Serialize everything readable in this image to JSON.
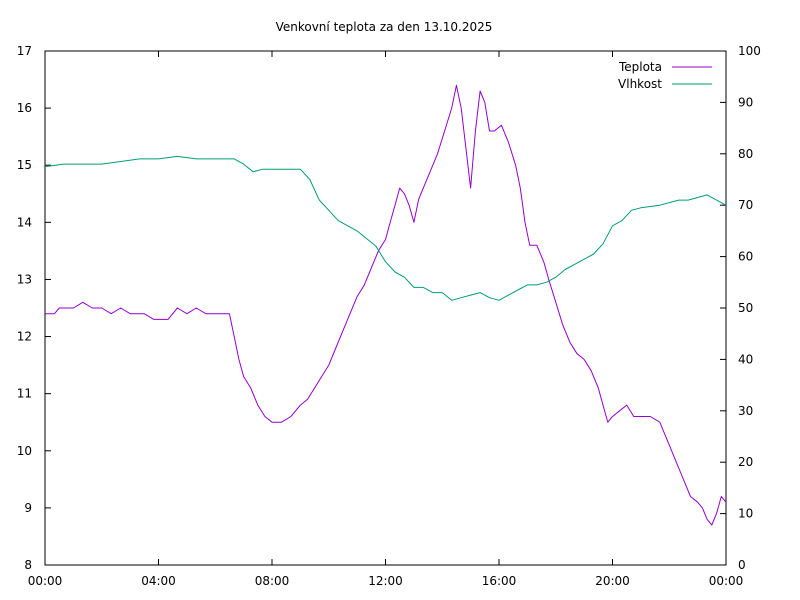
{
  "chart_data": {
    "type": "line",
    "title": "Venkovní teplota za den 13.10.2025",
    "x_range": [
      "00:00",
      "24:00"
    ],
    "x_ticks": [
      "00:00",
      "04:00",
      "08:00",
      "12:00",
      "16:00",
      "20:00",
      "00:00"
    ],
    "y_left_range": [
      8,
      17
    ],
    "y_left_ticks": [
      "8",
      "9",
      "10",
      "11",
      "12",
      "13",
      "14",
      "15",
      "16",
      "17"
    ],
    "y_right_range": [
      0,
      100
    ],
    "y_right_ticks": [
      "0",
      "10",
      "20",
      "30",
      "40",
      "50",
      "60",
      "70",
      "80",
      "90",
      "100"
    ],
    "grid": false,
    "legend": "top-right",
    "series": [
      {
        "name": "Teplota",
        "axis": "left",
        "color": "#9400d3",
        "points": [
          [
            "00:00",
            12.4
          ],
          [
            "00:20",
            12.4
          ],
          [
            "00:30",
            12.5
          ],
          [
            "01:00",
            12.5
          ],
          [
            "01:20",
            12.6
          ],
          [
            "01:40",
            12.5
          ],
          [
            "02:00",
            12.5
          ],
          [
            "02:20",
            12.4
          ],
          [
            "02:40",
            12.5
          ],
          [
            "03:00",
            12.4
          ],
          [
            "03:30",
            12.4
          ],
          [
            "03:50",
            12.3
          ],
          [
            "04:20",
            12.3
          ],
          [
            "04:40",
            12.5
          ],
          [
            "05:00",
            12.4
          ],
          [
            "05:20",
            12.5
          ],
          [
            "05:40",
            12.4
          ],
          [
            "06:00",
            12.4
          ],
          [
            "06:30",
            12.4
          ],
          [
            "06:40",
            12.0
          ],
          [
            "06:50",
            11.6
          ],
          [
            "07:00",
            11.3
          ],
          [
            "07:15",
            11.1
          ],
          [
            "07:30",
            10.8
          ],
          [
            "07:45",
            10.6
          ],
          [
            "08:00",
            10.5
          ],
          [
            "08:20",
            10.5
          ],
          [
            "08:40",
            10.6
          ],
          [
            "09:00",
            10.8
          ],
          [
            "09:15",
            10.9
          ],
          [
            "09:30",
            11.1
          ],
          [
            "09:45",
            11.3
          ],
          [
            "10:00",
            11.5
          ],
          [
            "10:15",
            11.8
          ],
          [
            "10:30",
            12.1
          ],
          [
            "10:45",
            12.4
          ],
          [
            "11:00",
            12.7
          ],
          [
            "11:15",
            12.9
          ],
          [
            "11:30",
            13.2
          ],
          [
            "11:45",
            13.5
          ],
          [
            "12:00",
            13.7
          ],
          [
            "12:10",
            14.0
          ],
          [
            "12:20",
            14.3
          ],
          [
            "12:30",
            14.6
          ],
          [
            "12:40",
            14.5
          ],
          [
            "12:50",
            14.3
          ],
          [
            "13:00",
            14.0
          ],
          [
            "13:10",
            14.4
          ],
          [
            "13:20",
            14.6
          ],
          [
            "13:35",
            14.9
          ],
          [
            "13:50",
            15.2
          ],
          [
            "14:05",
            15.6
          ],
          [
            "14:20",
            16.0
          ],
          [
            "14:30",
            16.4
          ],
          [
            "14:40",
            16.0
          ],
          [
            "14:50",
            15.3
          ],
          [
            "15:00",
            14.6
          ],
          [
            "15:10",
            15.6
          ],
          [
            "15:20",
            16.3
          ],
          [
            "15:30",
            16.1
          ],
          [
            "15:40",
            15.6
          ],
          [
            "15:50",
            15.6
          ],
          [
            "16:05",
            15.7
          ],
          [
            "16:20",
            15.4
          ],
          [
            "16:35",
            15.0
          ],
          [
            "16:45",
            14.6
          ],
          [
            "16:55",
            14.0
          ],
          [
            "17:05",
            13.6
          ],
          [
            "17:20",
            13.6
          ],
          [
            "17:35",
            13.3
          ],
          [
            "17:45",
            13.0
          ],
          [
            "18:00",
            12.6
          ],
          [
            "18:15",
            12.2
          ],
          [
            "18:30",
            11.9
          ],
          [
            "18:45",
            11.7
          ],
          [
            "19:00",
            11.6
          ],
          [
            "19:15",
            11.4
          ],
          [
            "19:30",
            11.1
          ],
          [
            "19:40",
            10.8
          ],
          [
            "19:50",
            10.5
          ],
          [
            "20:00",
            10.6
          ],
          [
            "20:15",
            10.7
          ],
          [
            "20:30",
            10.8
          ],
          [
            "20:45",
            10.6
          ],
          [
            "21:00",
            10.6
          ],
          [
            "21:20",
            10.6
          ],
          [
            "21:40",
            10.5
          ],
          [
            "21:50",
            10.3
          ],
          [
            "22:00",
            10.1
          ],
          [
            "22:15",
            9.8
          ],
          [
            "22:30",
            9.5
          ],
          [
            "22:45",
            9.2
          ],
          [
            "23:00",
            9.1
          ],
          [
            "23:10",
            9.0
          ],
          [
            "23:20",
            8.8
          ],
          [
            "23:30",
            8.7
          ],
          [
            "23:40",
            8.9
          ],
          [
            "23:50",
            9.2
          ],
          [
            "24:00",
            9.1
          ]
        ]
      },
      {
        "name": "Vlhkost",
        "axis": "right",
        "color": "#009e73",
        "points": [
          [
            "00:00",
            77.5
          ],
          [
            "00:40",
            78.0
          ],
          [
            "01:20",
            78.0
          ],
          [
            "02:00",
            78.0
          ],
          [
            "02:40",
            78.5
          ],
          [
            "03:20",
            79.0
          ],
          [
            "04:00",
            79.0
          ],
          [
            "04:40",
            79.5
          ],
          [
            "05:20",
            79.0
          ],
          [
            "06:00",
            79.0
          ],
          [
            "06:40",
            79.0
          ],
          [
            "07:00",
            78.0
          ],
          [
            "07:20",
            76.5
          ],
          [
            "07:40",
            77.0
          ],
          [
            "08:00",
            77.0
          ],
          [
            "08:40",
            77.0
          ],
          [
            "09:00",
            77.0
          ],
          [
            "09:20",
            75.0
          ],
          [
            "09:40",
            71.0
          ],
          [
            "10:00",
            69.0
          ],
          [
            "10:20",
            67.0
          ],
          [
            "10:40",
            66.0
          ],
          [
            "11:00",
            65.0
          ],
          [
            "11:20",
            63.5
          ],
          [
            "11:40",
            62.0
          ],
          [
            "12:00",
            59.0
          ],
          [
            "12:20",
            57.0
          ],
          [
            "12:40",
            56.0
          ],
          [
            "13:00",
            54.0
          ],
          [
            "13:20",
            54.0
          ],
          [
            "13:40",
            53.0
          ],
          [
            "14:00",
            53.0
          ],
          [
            "14:20",
            51.5
          ],
          [
            "14:40",
            52.0
          ],
          [
            "15:00",
            52.5
          ],
          [
            "15:20",
            53.0
          ],
          [
            "15:40",
            52.0
          ],
          [
            "16:00",
            51.5
          ],
          [
            "16:20",
            52.5
          ],
          [
            "16:40",
            53.5
          ],
          [
            "17:00",
            54.5
          ],
          [
            "17:20",
            54.5
          ],
          [
            "17:40",
            55.0
          ],
          [
            "18:00",
            56.0
          ],
          [
            "18:20",
            57.5
          ],
          [
            "18:40",
            58.5
          ],
          [
            "19:00",
            59.5
          ],
          [
            "19:20",
            60.5
          ],
          [
            "19:40",
            62.5
          ],
          [
            "20:00",
            66.0
          ],
          [
            "20:20",
            67.0
          ],
          [
            "20:40",
            69.0
          ],
          [
            "21:00",
            69.5
          ],
          [
            "21:40",
            70.0
          ],
          [
            "22:00",
            70.5
          ],
          [
            "22:20",
            71.0
          ],
          [
            "22:40",
            71.0
          ],
          [
            "23:00",
            71.5
          ],
          [
            "23:20",
            72.0
          ],
          [
            "23:40",
            71.0
          ],
          [
            "24:00",
            70.0
          ]
        ]
      }
    ]
  }
}
